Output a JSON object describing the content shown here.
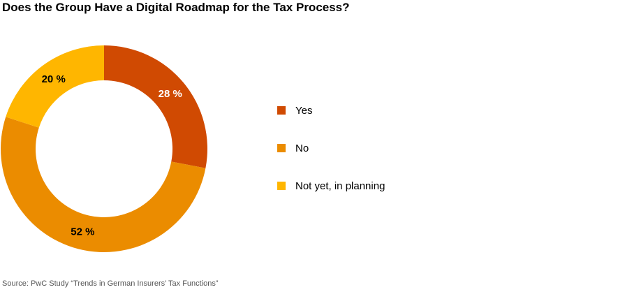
{
  "chart_data": {
    "type": "pie",
    "title": "Does the Group Have a Digital Roadmap for the Tax Process?",
    "source": "Source: PwC Study “Trends in German Insurers’ Tax Functions”",
    "slices": [
      {
        "name": "Yes",
        "value": 28,
        "label": "28 %",
        "color": "#d04a02",
        "label_color": "#ffffff"
      },
      {
        "name": "No",
        "value": 52,
        "label": "52 %",
        "color": "#eb8c00",
        "label_color": "#000000"
      },
      {
        "name": "Not yet, in planning",
        "value": 20,
        "label": "20 %",
        "color": "#ffb600",
        "label_color": "#000000"
      }
    ],
    "legend_position": "right"
  }
}
